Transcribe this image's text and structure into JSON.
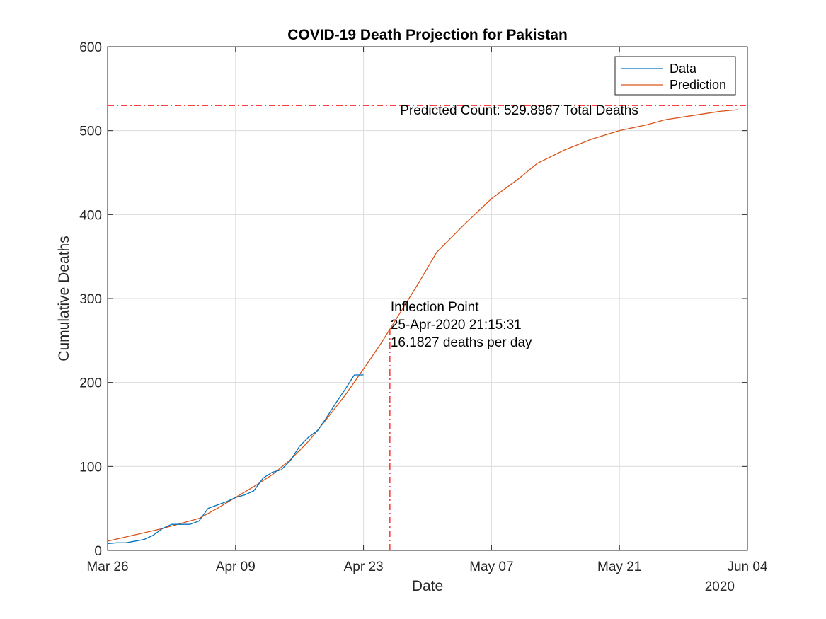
{
  "chart_data": {
    "type": "line",
    "title": "COVID-19 Death Projection for Pakistan",
    "xlabel": "Date",
    "ylabel": "Cumulative Deaths",
    "x_year_label": "2020",
    "x_axis": {
      "type": "date",
      "range": [
        "2020-03-26",
        "2020-06-04"
      ],
      "ticks": [
        "2020-03-26",
        "2020-04-09",
        "2020-04-23",
        "2020-05-07",
        "2020-05-21",
        "2020-06-04"
      ],
      "tick_labels": [
        "Mar 26",
        "Apr 09",
        "Apr 23",
        "May 07",
        "May 21",
        "Jun 04"
      ]
    },
    "y_axis": {
      "range": [
        0,
        600
      ],
      "ticks": [
        0,
        100,
        200,
        300,
        400,
        500,
        600
      ],
      "tick_labels": [
        "0",
        "100",
        "200",
        "300",
        "400",
        "500",
        "600"
      ]
    },
    "grid": true,
    "legend": {
      "position": "top-right",
      "entries": [
        "Data",
        "Prediction"
      ]
    },
    "colors": {
      "data": "#0072bd",
      "prediction": "#d95319",
      "reference": "#ff0000"
    },
    "series": [
      {
        "name": "Data",
        "color": "#0072bd",
        "points": [
          [
            "2020-03-26",
            8
          ],
          [
            "2020-03-27",
            9
          ],
          [
            "2020-03-28",
            9
          ],
          [
            "2020-03-29",
            11
          ],
          [
            "2020-03-30",
            13
          ],
          [
            "2020-03-31",
            18
          ],
          [
            "2020-04-01",
            26
          ],
          [
            "2020-04-02",
            31
          ],
          [
            "2020-04-03",
            31
          ],
          [
            "2020-04-04",
            31
          ],
          [
            "2020-04-05",
            35
          ],
          [
            "2020-04-06",
            50
          ],
          [
            "2020-04-07",
            54
          ],
          [
            "2020-04-08",
            58
          ],
          [
            "2020-04-09",
            63
          ],
          [
            "2020-04-10",
            66
          ],
          [
            "2020-04-11",
            71
          ],
          [
            "2020-04-12",
            86
          ],
          [
            "2020-04-13",
            93
          ],
          [
            "2020-04-14",
            96
          ],
          [
            "2020-04-15",
            107
          ],
          [
            "2020-04-16",
            124
          ],
          [
            "2020-04-17",
            135
          ],
          [
            "2020-04-18",
            143
          ],
          [
            "2020-04-19",
            159
          ],
          [
            "2020-04-20",
            176
          ],
          [
            "2020-04-21",
            192
          ],
          [
            "2020-04-22",
            209
          ],
          [
            "2020-04-23",
            209
          ]
        ]
      },
      {
        "name": "Prediction",
        "color": "#d95319",
        "points": [
          [
            "2020-03-26",
            11
          ],
          [
            "2020-03-28",
            16
          ],
          [
            "2020-03-30",
            21
          ],
          [
            "2020-04-01",
            26
          ],
          [
            "2020-04-03",
            32
          ],
          [
            "2020-04-05",
            38
          ],
          [
            "2020-04-07",
            50
          ],
          [
            "2020-04-09",
            63
          ],
          [
            "2020-04-11",
            76
          ],
          [
            "2020-04-13",
            90
          ],
          [
            "2020-04-15",
            108
          ],
          [
            "2020-04-17",
            130
          ],
          [
            "2020-04-19",
            157
          ],
          [
            "2020-04-21",
            185
          ],
          [
            "2020-04-23",
            216
          ],
          [
            "2020-04-25",
            248
          ],
          [
            "2020-04-27",
            283
          ],
          [
            "2020-04-29",
            318
          ],
          [
            "2020-05-01",
            355
          ],
          [
            "2020-05-04",
            388
          ],
          [
            "2020-05-07",
            419
          ],
          [
            "2020-05-10",
            443
          ],
          [
            "2020-05-12",
            461
          ],
          [
            "2020-05-15",
            477
          ],
          [
            "2020-05-18",
            490
          ],
          [
            "2020-05-21",
            500
          ],
          [
            "2020-05-24",
            507
          ],
          [
            "2020-05-26",
            513
          ],
          [
            "2020-05-29",
            518
          ],
          [
            "2020-06-01",
            523
          ],
          [
            "2020-06-03",
            525
          ]
        ]
      }
    ],
    "reference_lines": [
      {
        "type": "horizontal",
        "y": 529.8967,
        "style": "dash-dot",
        "color": "#ff0000"
      },
      {
        "type": "vertical",
        "x": "2020-04-25 21:15:31",
        "y_to": 265,
        "style": "dash-dot",
        "color": "#ff0000"
      }
    ],
    "annotations": {
      "predicted_count": {
        "text": "Predicted Count: 529.8967 Total Deaths",
        "x": "2020-04-27",
        "y": 519
      },
      "inflection": {
        "lines": [
          "Inflection Point",
          "25-Apr-2020 21:15:31",
          "16.1827 deaths per day"
        ],
        "x": "2020-04-25 21:15:31",
        "y": 285
      }
    }
  }
}
